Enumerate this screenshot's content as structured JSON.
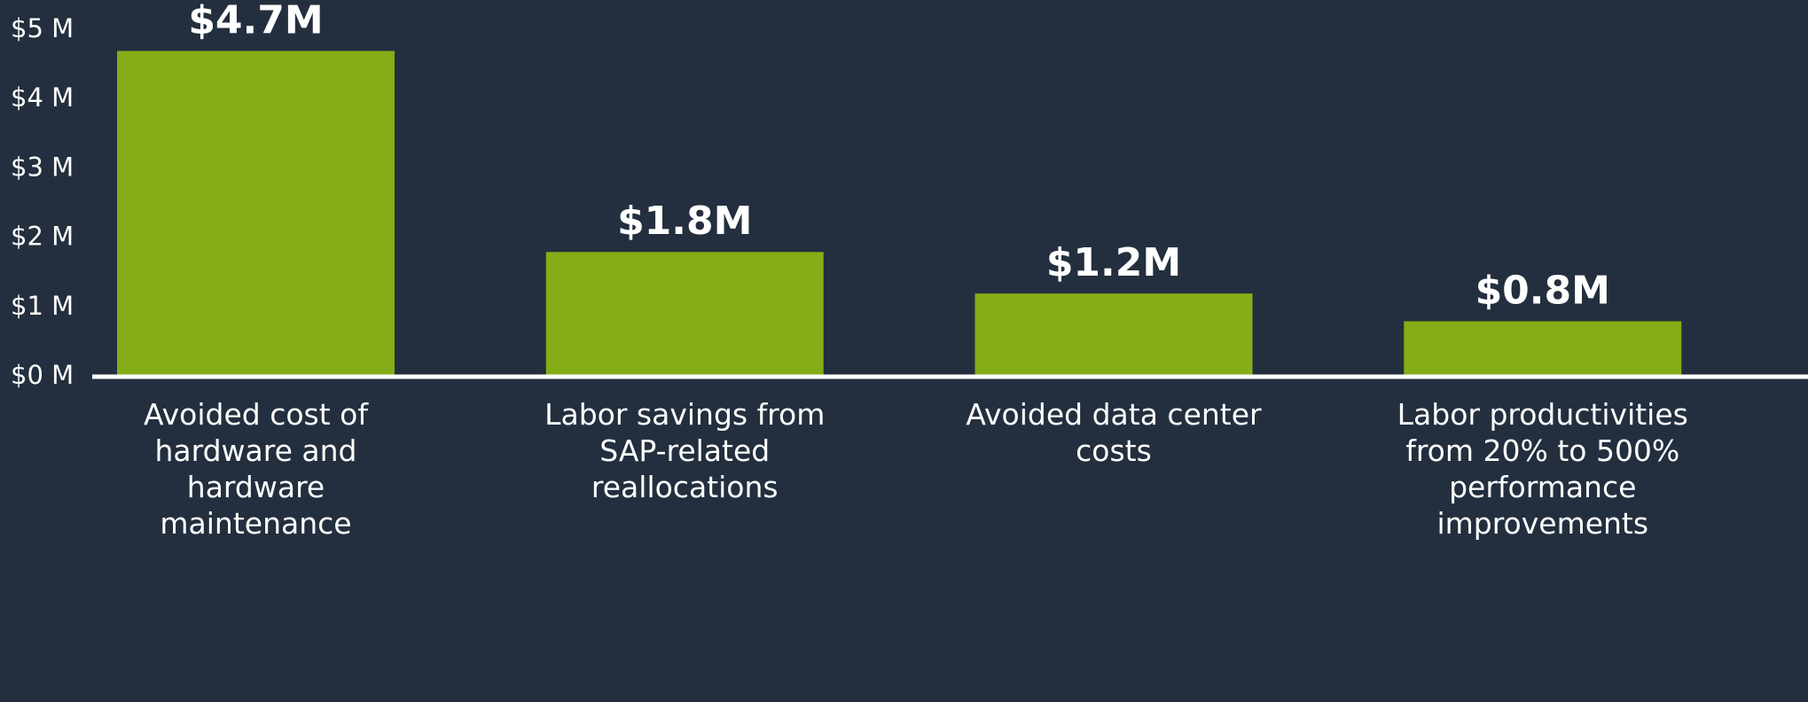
{
  "chart_data": {
    "type": "bar",
    "categories": [
      "Avoided cost of hardware and hardware maintenance",
      "Labor savings from SAP-related reallocations",
      "Avoided data center costs",
      "Labor productivities from 20% to 500% performance improvements"
    ],
    "values": [
      4.7,
      1.8,
      1.2,
      0.8
    ],
    "value_labels": [
      "$4.7M",
      "$1.8M",
      "$1.2M",
      "$0.8M"
    ],
    "color": "#84ad17",
    "ylim": [
      0,
      5
    ],
    "yticks": [
      {
        "value": 0,
        "label": "$0 M"
      },
      {
        "value": 1,
        "label": "$1 M"
      },
      {
        "value": 2,
        "label": "$2 M"
      },
      {
        "value": 3,
        "label": "$3 M"
      },
      {
        "value": 4,
        "label": "$4 M"
      },
      {
        "value": 5,
        "label": "$5 M"
      }
    ],
    "grid": false
  }
}
